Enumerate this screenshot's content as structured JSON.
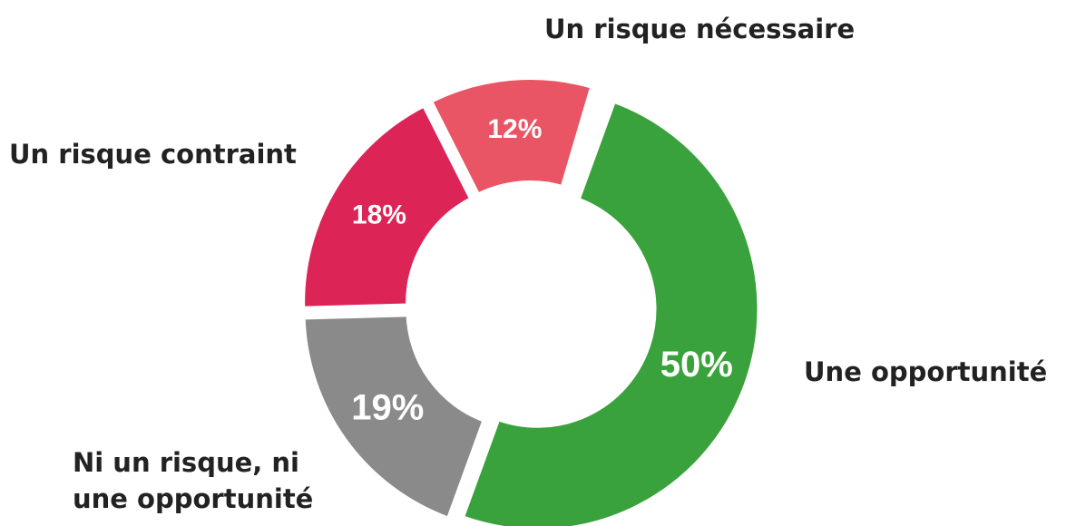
{
  "chart_data": {
    "type": "donut",
    "categories": [
      "Une opportunité",
      "Ni un risque, ni une opportunité",
      "Un risque contraint",
      "Un risque nécessaire"
    ],
    "values": [
      50,
      19,
      18,
      12
    ],
    "value_labels": [
      "50%",
      "19%",
      "18%",
      "12%"
    ],
    "colors": [
      "#3aa23c",
      "#8a8a8a",
      "#dc2457",
      "#ea5565"
    ]
  }
}
